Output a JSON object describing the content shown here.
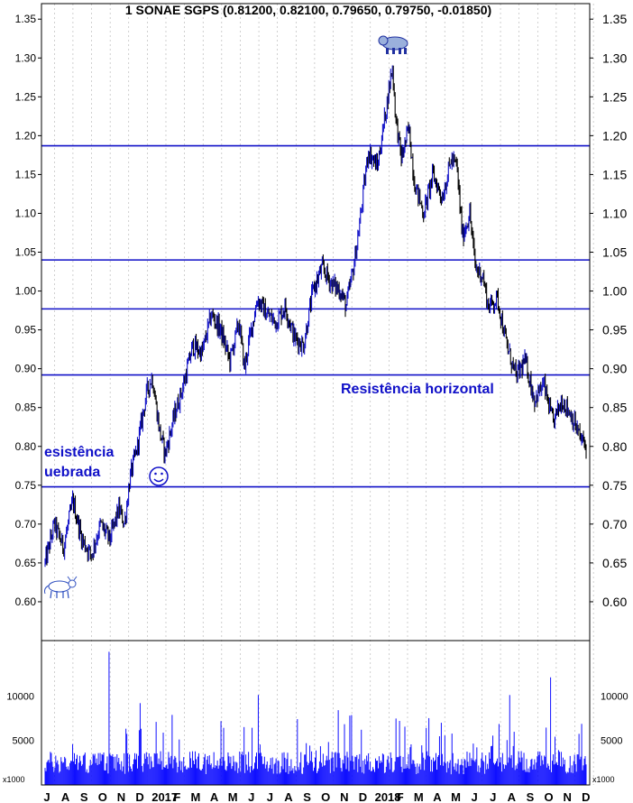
{
  "chart_data": {
    "type": "candlestick",
    "title": "1 SONAE SGPS (0.81200, 0.82100, 0.79650, 0.79750, -0.01850)",
    "price_axis": {
      "ylim": [
        0.55,
        1.37
      ],
      "ticks": [
        "1.35",
        "1.30",
        "1.25",
        "1.20",
        "1.15",
        "1.10",
        "1.05",
        "1.00",
        "0.95",
        "0.90",
        "0.85",
        "0.80",
        "0.75",
        "0.70",
        "0.65",
        "0.60"
      ],
      "tick_values": [
        1.35,
        1.3,
        1.25,
        1.2,
        1.15,
        1.1,
        1.05,
        1.0,
        0.95,
        0.9,
        0.85,
        0.8,
        0.75,
        0.7,
        0.65,
        0.6
      ]
    },
    "volume_axis": {
      "unit": "x1000",
      "ylim": [
        0,
        16000
      ],
      "ticks": [
        "10000",
        "5000"
      ],
      "tick_values": [
        10000,
        5000
      ]
    },
    "x_labels": [
      "J",
      "A",
      "S",
      "O",
      "N",
      "D",
      "2017",
      "F",
      "M",
      "A",
      "M",
      "J",
      "J",
      "A",
      "S",
      "O",
      "N",
      "D",
      "2018",
      "F",
      "M",
      "A",
      "M",
      "J",
      "J",
      "A",
      "S",
      "O",
      "N",
      "D"
    ],
    "x_label_positions": [
      0,
      1,
      2,
      3,
      4,
      5,
      6,
      7,
      8,
      9,
      10,
      11,
      12,
      13,
      14,
      15,
      16,
      17,
      18,
      19,
      20,
      21,
      22,
      23,
      24,
      25,
      26,
      27,
      28,
      29
    ],
    "n_months": 29.3,
    "price_path": [
      [
        0.0,
        0.65
      ],
      [
        0.5,
        0.7
      ],
      [
        1.0,
        0.67
      ],
      [
        1.5,
        0.73
      ],
      [
        2.0,
        0.68
      ],
      [
        2.5,
        0.66
      ],
      [
        3.0,
        0.7
      ],
      [
        3.5,
        0.68
      ],
      [
        4.0,
        0.72
      ],
      [
        4.3,
        0.7
      ],
      [
        4.6,
        0.76
      ],
      [
        5.0,
        0.8
      ],
      [
        5.5,
        0.87
      ],
      [
        5.8,
        0.89
      ],
      [
        6.2,
        0.82
      ],
      [
        6.5,
        0.79
      ],
      [
        7.0,
        0.84
      ],
      [
        7.5,
        0.88
      ],
      [
        8.0,
        0.93
      ],
      [
        8.5,
        0.92
      ],
      [
        9.0,
        0.97
      ],
      [
        9.5,
        0.95
      ],
      [
        10.0,
        0.91
      ],
      [
        10.5,
        0.96
      ],
      [
        10.8,
        0.9
      ],
      [
        11.0,
        0.93
      ],
      [
        11.5,
        0.99
      ],
      [
        12.0,
        0.97
      ],
      [
        12.5,
        0.96
      ],
      [
        13.0,
        0.98
      ],
      [
        13.5,
        0.94
      ],
      [
        14.0,
        0.93
      ],
      [
        14.5,
        1.0
      ],
      [
        15.0,
        1.03
      ],
      [
        15.5,
        1.01
      ],
      [
        16.0,
        1.0
      ],
      [
        16.3,
        0.98
      ],
      [
        16.7,
        1.03
      ],
      [
        17.0,
        1.08
      ],
      [
        17.5,
        1.18
      ],
      [
        18.0,
        1.16
      ],
      [
        18.5,
        1.24
      ],
      [
        18.8,
        1.29
      ],
      [
        19.0,
        1.22
      ],
      [
        19.3,
        1.17
      ],
      [
        19.7,
        1.21
      ],
      [
        20.0,
        1.14
      ],
      [
        20.5,
        1.1
      ],
      [
        21.0,
        1.15
      ],
      [
        21.5,
        1.12
      ],
      [
        22.0,
        1.17
      ],
      [
        22.3,
        1.16
      ],
      [
        22.6,
        1.07
      ],
      [
        23.0,
        1.1
      ],
      [
        23.3,
        1.03
      ],
      [
        23.7,
        1.02
      ],
      [
        24.0,
        0.98
      ],
      [
        24.5,
        0.99
      ],
      [
        25.0,
        0.93
      ],
      [
        25.5,
        0.89
      ],
      [
        26.0,
        0.91
      ],
      [
        26.5,
        0.86
      ],
      [
        27.0,
        0.88
      ],
      [
        27.5,
        0.83
      ],
      [
        28.0,
        0.86
      ],
      [
        28.5,
        0.84
      ],
      [
        29.0,
        0.81
      ],
      [
        29.3,
        0.8
      ]
    ],
    "horizontal_lines": [
      1.187,
      1.04,
      0.977,
      0.892,
      0.748
    ],
    "annotations": {
      "resistencia_horizontal": "Resistência horizontal",
      "resistencia_line1": "esistência",
      "resistencia_line2": "uebrada"
    },
    "icons": [
      "bull-icon",
      "bear-icon",
      "smiley-icon"
    ],
    "colors": {
      "candle": "#1010c8",
      "candle_dark": "#000000",
      "hline": "#1010c8",
      "volume": "#1010ff",
      "grid": "#b0b0b0"
    }
  }
}
